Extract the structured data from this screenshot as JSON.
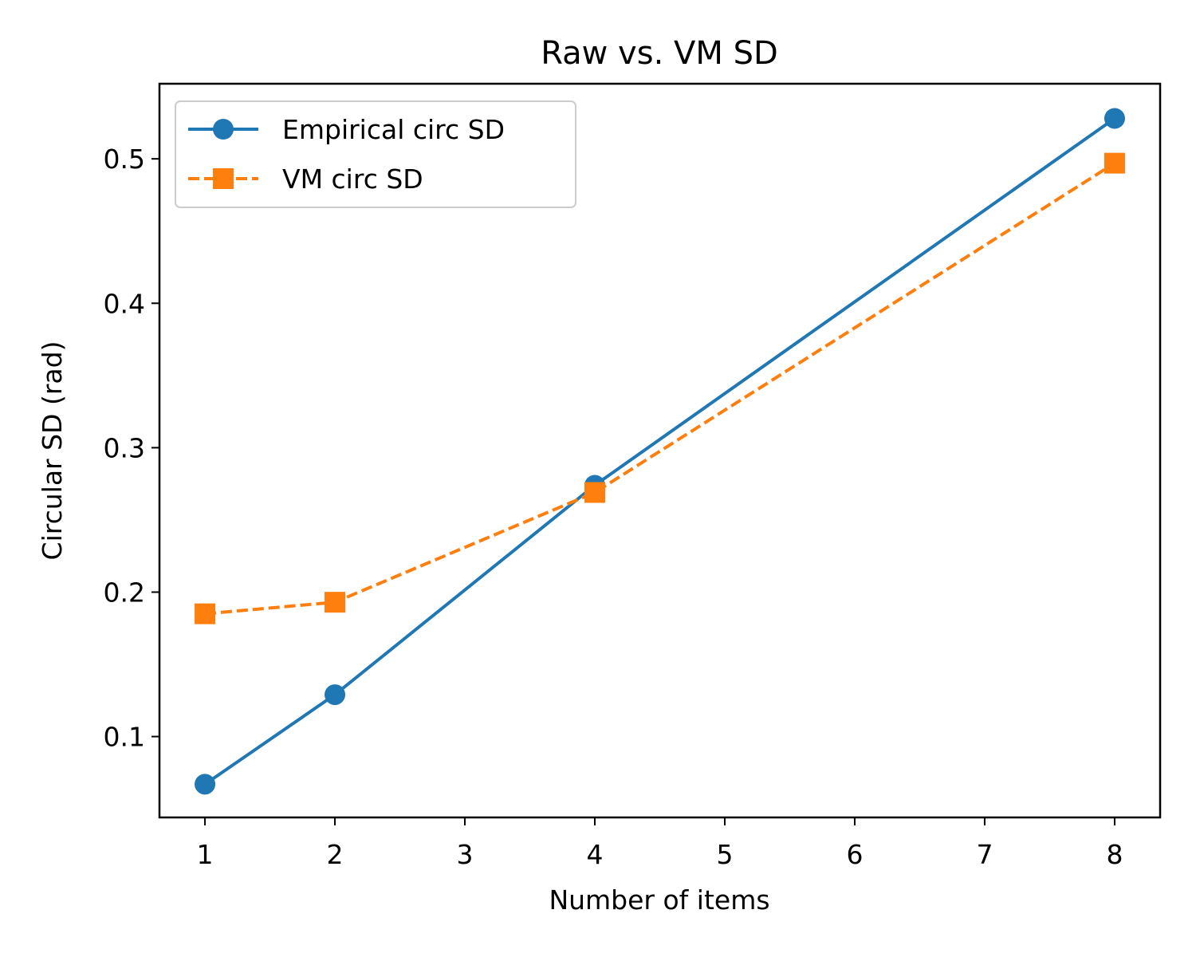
{
  "chart_data": {
    "type": "line",
    "title": "Raw vs. VM SD",
    "xlabel": "Number of items",
    "ylabel": "Circular SD (rad)",
    "xlim": [
      0.65,
      8.35
    ],
    "ylim": [
      0.044,
      0.552
    ],
    "xticks": [
      1,
      2,
      3,
      4,
      5,
      6,
      7,
      8
    ],
    "yticks": [
      0.1,
      0.2,
      0.3,
      0.4,
      0.5
    ],
    "xtick_labels": [
      "1",
      "2",
      "3",
      "4",
      "5",
      "6",
      "7",
      "8"
    ],
    "ytick_labels": [
      "0.1",
      "0.2",
      "0.3",
      "0.4",
      "0.5"
    ],
    "grid": false,
    "legend_position": "top-left",
    "series": [
      {
        "name": "Empirical circ SD",
        "x": [
          1,
          2,
          4,
          8
        ],
        "y": [
          0.067,
          0.129,
          0.274,
          0.528
        ],
        "color": "#1f77b4",
        "line_style": "solid",
        "marker": "circle"
      },
      {
        "name": "VM circ SD",
        "x": [
          1,
          2,
          4,
          8
        ],
        "y": [
          0.185,
          0.193,
          0.269,
          0.497
        ],
        "color": "#ff7f0e",
        "line_style": "dashed",
        "marker": "square"
      }
    ]
  }
}
